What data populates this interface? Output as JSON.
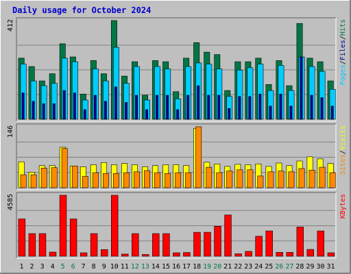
{
  "colors": {
    "background": "#c0c0c0",
    "plot_bg": "#bfbfbf",
    "title": "#0000cc",
    "hits": "#007744",
    "files": "#00ccff",
    "pages": "#000099",
    "visits": "#ffff00",
    "sites": "#ff8800",
    "kbytes": "#ff0000",
    "weekend_label": "#007744",
    "day_label": "#000000"
  },
  "chart_data": {
    "type": "bar",
    "title": "Daily usage for October 2024",
    "x": [
      "1",
      "2",
      "3",
      "4",
      "5",
      "6",
      "7",
      "8",
      "9",
      "10",
      "11",
      "12",
      "13",
      "14",
      "15",
      "16",
      "17",
      "18",
      "19",
      "20",
      "21",
      "22",
      "23",
      "24",
      "25",
      "26",
      "27",
      "28",
      "29",
      "30",
      "31"
    ],
    "weekend_days": [
      "5",
      "6",
      "12",
      "13",
      "19",
      "20",
      "26",
      "27"
    ],
    "panels": [
      {
        "name": "hits_files_pages",
        "ymax_label": "412",
        "ylim": [
          0,
          412
        ],
        "legend": [
          {
            "text": "Pages",
            "color_key": "files"
          },
          {
            "text": "Files",
            "color_key": "pages"
          },
          {
            "text": "Hits",
            "color_key": "hits"
          }
        ],
        "series": [
          {
            "name": "Hits",
            "color_key": "hits",
            "values": [
              255,
              220,
              160,
              190,
              315,
              260,
              105,
              245,
              190,
              412,
              180,
              240,
              100,
              245,
              240,
              115,
              255,
              320,
              280,
              270,
              120,
              240,
              240,
              255,
              145,
              245,
              140,
              400,
              255,
              240,
              160
            ]
          },
          {
            "name": "Files",
            "color_key": "files",
            "values": [
              230,
              160,
              140,
              150,
              255,
              240,
              80,
              210,
              160,
              300,
              150,
              220,
              80,
              220,
              210,
              85,
              220,
              235,
              230,
              210,
              95,
              205,
              215,
              230,
              120,
              225,
              120,
              260,
              220,
              200,
              125
            ]
          },
          {
            "name": "Pages",
            "color_key": "pages",
            "values": [
              110,
              75,
              65,
              65,
              120,
              110,
              40,
              100,
              75,
              135,
              70,
              100,
              40,
              100,
              100,
              40,
              100,
              140,
              100,
              100,
              45,
              95,
              95,
              105,
              55,
              105,
              55,
              260,
              100,
              90,
              55
            ]
          }
        ]
      },
      {
        "name": "visits_sites",
        "ymax_label": "146",
        "ylim": [
          0,
          146
        ],
        "legend": [
          {
            "text": "Sites",
            "color_key": "sites"
          },
          {
            "text": "/",
            "color_key": "day_label"
          },
          {
            "text": "Visits",
            "color_key": "visits"
          }
        ],
        "series": [
          {
            "name": "Visits",
            "color_key": "visits",
            "values": [
              62,
              37,
              53,
              53,
              97,
              52,
              50,
              55,
              60,
              55,
              58,
              55,
              50,
              53,
              55,
              55,
              53,
              142,
              61,
              57,
              51,
              56,
              55,
              57,
              51,
              59,
              53,
              64,
              74,
              69,
              58
            ]
          },
          {
            "name": "Sites",
            "color_key": "sites",
            "values": [
              31,
              31,
              47,
              48,
              94,
              52,
              27,
              36,
              34,
              34,
              36,
              38,
              41,
              36,
              34,
              36,
              36,
              146,
              49,
              36,
              40,
              43,
              43,
              28,
              38,
              40,
              38,
              46,
              42,
              49,
              36
            ]
          }
        ]
      },
      {
        "name": "kbytes",
        "ymax_label": "4585",
        "ylim": [
          0,
          4585
        ],
        "legend": [
          {
            "text": "KBytes",
            "color_key": "kbytes"
          }
        ],
        "series": [
          {
            "name": "KBytes",
            "color_key": "kbytes",
            "values": [
              2800,
              1700,
              1700,
              310,
              4585,
              2800,
              260,
              1700,
              500,
              4585,
              160,
              1700,
              130,
              1700,
              1700,
              260,
              280,
              1800,
              1800,
              2250,
              3100,
              180,
              360,
              1500,
              1900,
              290,
              290,
              2200,
              510,
              1900,
              260
            ]
          }
        ]
      }
    ]
  }
}
